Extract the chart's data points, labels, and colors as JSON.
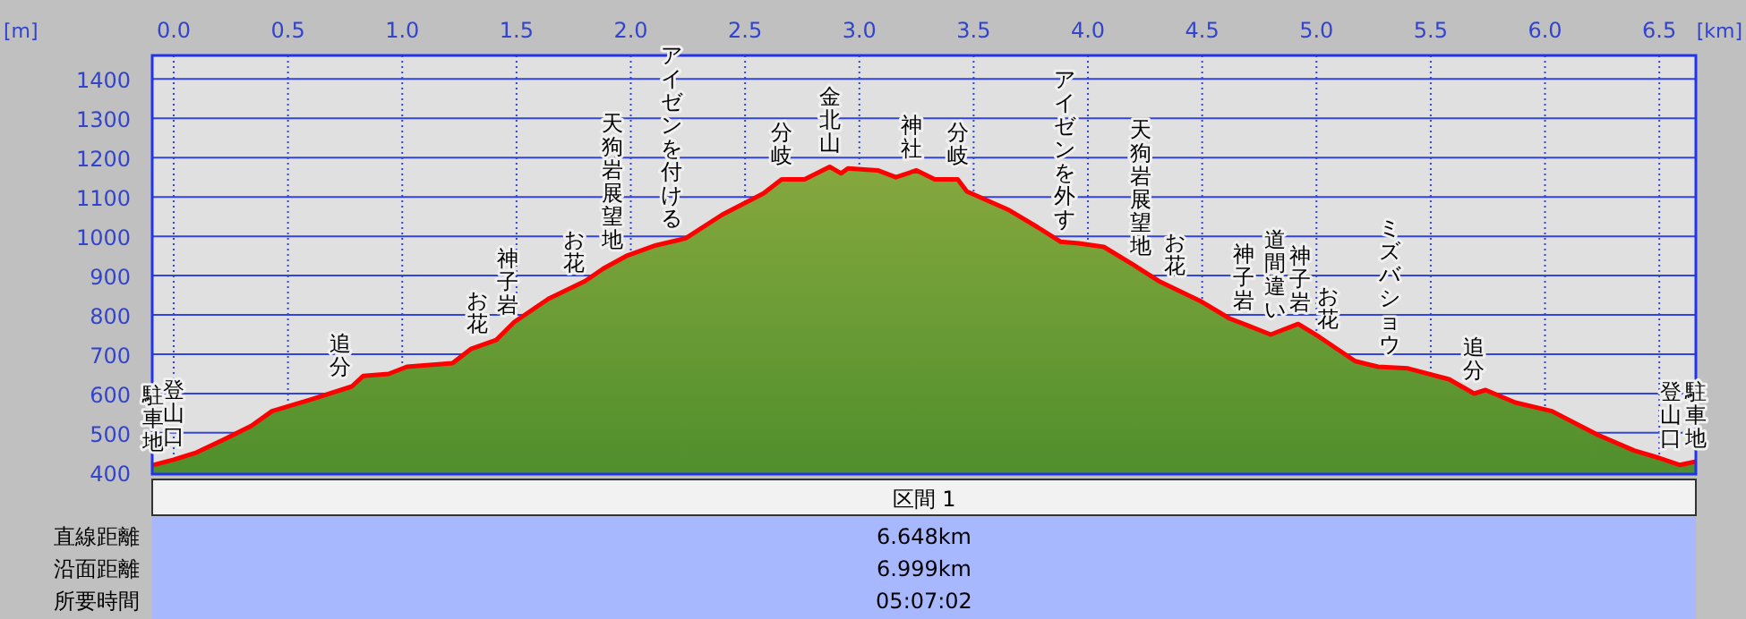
{
  "chart_data": {
    "type": "area",
    "xlabel": "[km]",
    "ylabel": "[m]",
    "xlim": [
      -0.094,
      6.66
    ],
    "ylim": [
      395,
      1460
    ],
    "xticks": [
      {
        "value": 0,
        "label": "0.0"
      },
      {
        "value": 0.5,
        "label": "0.5"
      },
      {
        "value": 1,
        "label": "1.0"
      },
      {
        "value": 1.5,
        "label": "1.5"
      },
      {
        "value": 2,
        "label": "2.0"
      },
      {
        "value": 2.5,
        "label": "2.5"
      },
      {
        "value": 3,
        "label": "3.0"
      },
      {
        "value": 3.5,
        "label": "3.5"
      },
      {
        "value": 4,
        "label": "4.0"
      },
      {
        "value": 4.5,
        "label": "4.5"
      },
      {
        "value": 5,
        "label": "5.0"
      },
      {
        "value": 5.5,
        "label": "5.5"
      },
      {
        "value": 6,
        "label": "6.0"
      },
      {
        "value": 6.5,
        "label": "6.5"
      }
    ],
    "yticks": [
      400,
      500,
      600,
      700,
      800,
      900,
      1000,
      1100,
      1200,
      1300,
      1400
    ],
    "grid": true,
    "series": [
      {
        "color": "#ff0000",
        "x": [
          -0.09,
          0,
          0.1,
          0.23,
          0.34,
          0.43,
          0.6,
          0.78,
          0.83,
          0.94,
          1.02,
          1.22,
          1.3,
          1.41,
          1.49,
          1.64,
          1.8,
          1.88,
          1.98,
          2.11,
          2.24,
          2.4,
          2.58,
          2.66,
          2.76,
          2.87,
          2.92,
          2.95,
          3.08,
          3.16,
          3.25,
          3.33,
          3.43,
          3.47,
          3.65,
          3.78,
          3.88,
          3.96,
          4.07,
          4.2,
          4.31,
          4.49,
          4.62,
          4.7,
          4.8,
          4.92,
          5.01,
          5.17,
          5.27,
          5.4,
          5.58,
          5.69,
          5.74,
          5.87,
          6.03,
          6.23,
          6.39,
          6.5,
          6.59,
          6.66
        ],
        "values": [
          418,
          432,
          450,
          486,
          518,
          555,
          585,
          618,
          645,
          650,
          668,
          677,
          713,
          736,
          782,
          841,
          886,
          918,
          950,
          977,
          995,
          1055,
          1109,
          1145,
          1145,
          1177,
          1160,
          1173,
          1168,
          1150,
          1168,
          1145,
          1145,
          1114,
          1068,
          1023,
          986,
          982,
          973,
          927,
          886,
          836,
          791,
          773,
          750,
          777,
          745,
          682,
          668,
          664,
          636,
          600,
          609,
          577,
          555,
          495,
          455,
          436,
          418,
          427
        ]
      }
    ],
    "annotations": [
      {
        "text": "駐車地",
        "x": -0.09,
        "y": 418
      },
      {
        "text": "登山口",
        "x": 0.0,
        "y": 432
      },
      {
        "text": "追分",
        "x": 0.73,
        "y": 609
      },
      {
        "text": "お花",
        "x": 1.33,
        "y": 719
      },
      {
        "text": "神子岩",
        "x": 1.46,
        "y": 765
      },
      {
        "text": "お花",
        "x": 1.75,
        "y": 872
      },
      {
        "text": "天狗岩展望地",
        "x": 1.92,
        "y": 931
      },
      {
        "text": "アイゼンを付ける",
        "x": 2.18,
        "y": 987
      },
      {
        "text": "分岐",
        "x": 2.66,
        "y": 1145
      },
      {
        "text": "金北山",
        "x": 2.87,
        "y": 1177
      },
      {
        "text": "神社",
        "x": 3.23,
        "y": 1164
      },
      {
        "text": "分岐",
        "x": 3.43,
        "y": 1145
      },
      {
        "text": "アイゼンを外す",
        "x": 3.9,
        "y": 985
      },
      {
        "text": "天狗岩展望地",
        "x": 4.23,
        "y": 916
      },
      {
        "text": "お花",
        "x": 4.38,
        "y": 867
      },
      {
        "text": "神子岩",
        "x": 4.68,
        "y": 778
      },
      {
        "text": "道間違い",
        "x": 4.82,
        "y": 755
      },
      {
        "text": "神子岩",
        "x": 4.93,
        "y": 773
      },
      {
        "text": "お花",
        "x": 5.05,
        "y": 729
      },
      {
        "text": "ミズバショウ",
        "x": 5.32,
        "y": 666
      },
      {
        "text": "追分",
        "x": 5.69,
        "y": 600
      },
      {
        "text": "登山口",
        "x": 6.55,
        "y": 426
      },
      {
        "text": "駐車地",
        "x": 6.66,
        "y": 427
      },
      "区間 1",
      "直線距離",
      "6.648km",
      "沿面距離",
      "6.999km",
      "所要時間",
      "05:07:02"
    ]
  }
}
